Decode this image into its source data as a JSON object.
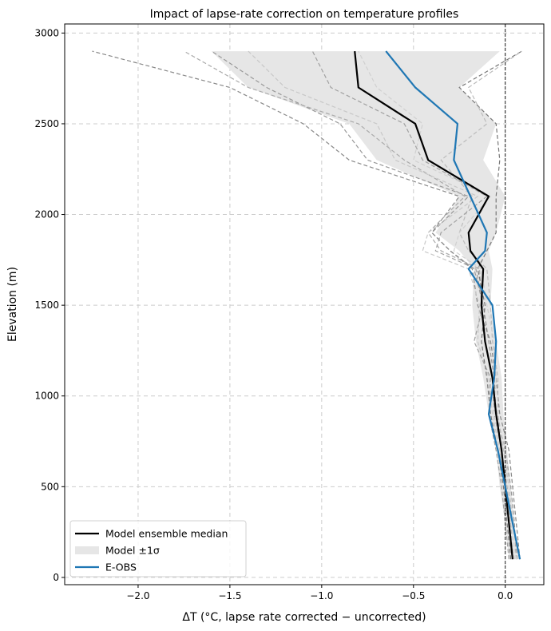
{
  "chart_data": {
    "type": "line",
    "title": "Impact of lapse-rate correction on temperature profiles",
    "xlabel": "ΔT (°C, lapse rate corrected − uncorrected)",
    "ylabel": "Elevation (m)",
    "xlim": [
      -2.4,
      0.21
    ],
    "ylim": [
      -40,
      3050
    ],
    "xticks": [
      -2.0,
      -1.5,
      -1.0,
      -0.5,
      0.0
    ],
    "xtick_labels": [
      "−2.0",
      "−1.5",
      "−1.0",
      "−0.5",
      "0.0"
    ],
    "yticks": [
      0,
      500,
      1000,
      1500,
      2000,
      2500,
      3000
    ],
    "ytick_labels": [
      "0",
      "500",
      "1000",
      "1500",
      "2000",
      "2500",
      "3000"
    ],
    "grid": true,
    "zero_line": 0.0,
    "legend_position": "lower-left",
    "legend": [
      "Model ensemble median",
      "Model ±1σ",
      "E-OBS"
    ],
    "colors": {
      "median": "#000000",
      "band": "#e6e6e6",
      "eobs": "#1f77b4",
      "members": [
        "#999999",
        "#888888",
        "#aaaaaa",
        "#c8c8c8",
        "#777777",
        "#bbbbbb",
        "#a0a0a0",
        "#d0d0d0"
      ]
    },
    "elevations": [
      100,
      300,
      500,
      700,
      900,
      1100,
      1300,
      1500,
      1700,
      1800,
      1900,
      2100,
      2300,
      2500,
      2700,
      2900
    ],
    "median": [
      0.04,
      0.02,
      0.0,
      -0.02,
      -0.05,
      -0.07,
      -0.11,
      -0.13,
      -0.12,
      -0.19,
      -0.2,
      -0.09,
      -0.42,
      -0.49,
      -0.8,
      -0.82
    ],
    "band_lower": [
      0.02,
      0.0,
      -0.03,
      -0.05,
      -0.09,
      -0.12,
      -0.16,
      -0.18,
      -0.17,
      -0.25,
      -0.38,
      -0.25,
      -0.7,
      -0.85,
      -1.4,
      -1.6
    ],
    "band_upper": [
      0.07,
      0.05,
      0.03,
      0.01,
      -0.01,
      -0.02,
      -0.05,
      -0.08,
      -0.07,
      -0.09,
      -0.05,
      0.0,
      -0.12,
      -0.05,
      -0.25,
      -0.03
    ],
    "eobs": [
      0.08,
      0.04,
      0.0,
      -0.04,
      -0.09,
      -0.06,
      -0.05,
      -0.07,
      -0.2,
      -0.11,
      -0.1,
      -0.19,
      -0.28,
      -0.26,
      -0.49,
      -0.65
    ],
    "members": [
      [
        0.06,
        0.05,
        0.03,
        0.0,
        -0.05,
        -0.06,
        -0.09,
        -0.12,
        -0.17,
        -0.3,
        -0.4,
        -0.2,
        -0.75,
        -0.9,
        -1.3,
        -1.6
      ],
      [
        0.08,
        0.06,
        0.04,
        0.02,
        -0.03,
        -0.05,
        -0.08,
        -0.15,
        -0.18,
        -0.3,
        -0.4,
        -0.25,
        -0.85,
        -1.1,
        -1.5,
        -2.25
      ],
      [
        0.04,
        0.03,
        0.01,
        -0.02,
        -0.06,
        -0.07,
        -0.11,
        -0.13,
        -0.14,
        -0.35,
        -0.42,
        -0.22,
        -0.55,
        -0.8,
        -1.4,
        -1.75
      ],
      [
        0.05,
        0.02,
        0.0,
        -0.03,
        -0.07,
        -0.09,
        -0.15,
        -0.14,
        -0.2,
        -0.45,
        -0.42,
        -0.15,
        -0.6,
        -0.7,
        -1.2,
        -1.4
      ],
      [
        0.03,
        0.01,
        -0.01,
        -0.04,
        -0.08,
        -0.1,
        -0.13,
        -0.11,
        -0.15,
        -0.1,
        -0.05,
        -0.05,
        -0.03,
        -0.05,
        -0.25,
        0.09
      ],
      [
        0.07,
        0.04,
        0.02,
        -0.01,
        -0.04,
        -0.04,
        -0.07,
        -0.08,
        -0.1,
        -0.2,
        -0.25,
        -0.18,
        -0.35,
        -0.1,
        -0.2,
        0.09
      ],
      [
        0.02,
        0.0,
        -0.02,
        -0.05,
        -0.09,
        -0.08,
        -0.17,
        -0.12,
        -0.16,
        -0.38,
        -0.35,
        -0.1,
        -0.45,
        -0.55,
        -0.95,
        -1.05
      ],
      [
        0.06,
        0.03,
        0.02,
        0.0,
        -0.06,
        -0.05,
        -0.06,
        -0.1,
        -0.13,
        -0.28,
        -0.25,
        -0.08,
        -0.5,
        -0.45,
        -0.7,
        -0.8
      ]
    ]
  }
}
